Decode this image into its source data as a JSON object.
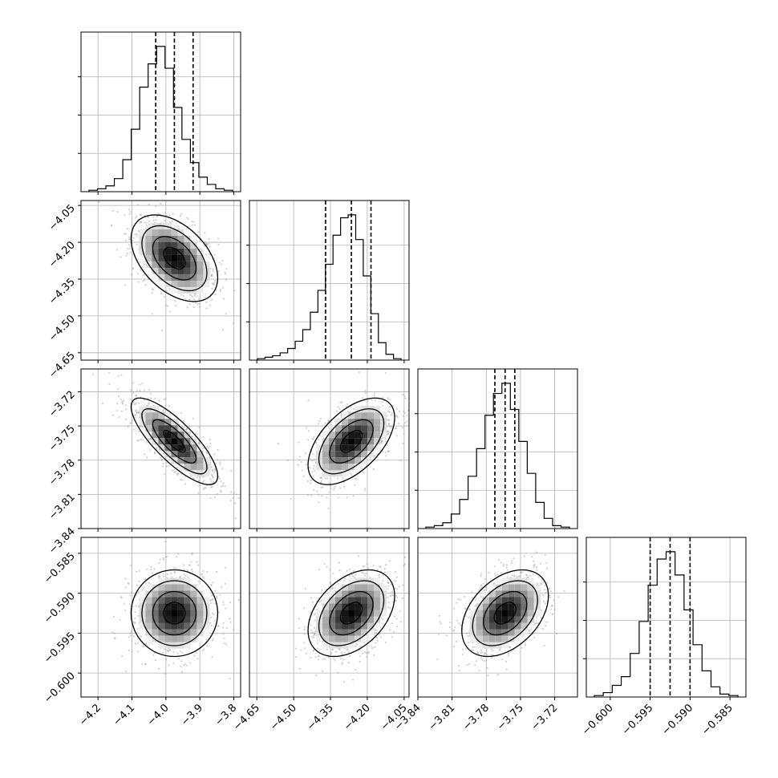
{
  "chart_data": {
    "type": "corner",
    "params": [
      {
        "ticks": [
          "−4.2",
          "−4.1",
          "−4.0",
          "−3.9",
          "−3.8"
        ],
        "tick_values": [
          -4.2,
          -4.1,
          -4.0,
          -3.9,
          -3.8
        ],
        "range": [
          -4.25,
          -3.78
        ],
        "mean": -3.975,
        "quantiles": [
          -4.03,
          -3.975,
          -3.92
        ],
        "hist": [
          0.01,
          0.02,
          0.04,
          0.09,
          0.22,
          0.43,
          0.72,
          0.88,
          1.0,
          0.85,
          0.58,
          0.36,
          0.2,
          0.1,
          0.05,
          0.02,
          0.01
        ]
      },
      {
        "ticks": [
          "−4.65",
          "−4.50",
          "−4.35",
          "−4.20",
          "−4.05"
        ],
        "tick_values": [
          -4.65,
          -4.5,
          -4.35,
          -4.2,
          -4.05
        ],
        "range": [
          -4.68,
          -4.03
        ],
        "mean": -4.265,
        "quantiles": [
          -4.37,
          -4.265,
          -4.185
        ],
        "hist": [
          0.01,
          0.02,
          0.03,
          0.05,
          0.08,
          0.13,
          0.21,
          0.33,
          0.48,
          0.66,
          0.86,
          0.98,
          1.0,
          0.83,
          0.58,
          0.32,
          0.12,
          0.04,
          0.01
        ]
      },
      {
        "ticks": [
          "−3.84",
          "−3.81",
          "−3.78",
          "−3.75",
          "−3.72"
        ],
        "tick_values": [
          -3.84,
          -3.81,
          -3.78,
          -3.75,
          -3.72
        ],
        "range": [
          -3.84,
          -3.7
        ],
        "mean": -3.7635,
        "quantiles": [
          -3.7725,
          -3.7635,
          -3.755
        ],
        "hist": [
          0.01,
          0.02,
          0.04,
          0.1,
          0.2,
          0.36,
          0.55,
          0.78,
          0.93,
          1.0,
          0.82,
          0.6,
          0.38,
          0.18,
          0.07,
          0.02,
          0.01
        ]
      },
      {
        "ticks": [
          "−0.600",
          "−0.595",
          "−0.590",
          "−0.585"
        ],
        "tick_values": [
          -0.6,
          -0.595,
          -0.59,
          -0.585
        ],
        "range": [
          -0.603,
          -0.583
        ],
        "mean": -0.5925,
        "quantiles": [
          -0.595,
          -0.5925,
          -0.59
        ],
        "hist": [
          0.01,
          0.03,
          0.08,
          0.14,
          0.3,
          0.52,
          0.77,
          0.95,
          1.0,
          0.84,
          0.6,
          0.36,
          0.18,
          0.07,
          0.02,
          0.01
        ]
      }
    ],
    "correlations": {
      "1,0": -0.45,
      "2,0": -0.8,
      "2,1": 0.55,
      "3,0": 0.0,
      "3,1": 0.4,
      "3,2": 0.4
    },
    "quantile_style": "dashed",
    "grid": true
  }
}
